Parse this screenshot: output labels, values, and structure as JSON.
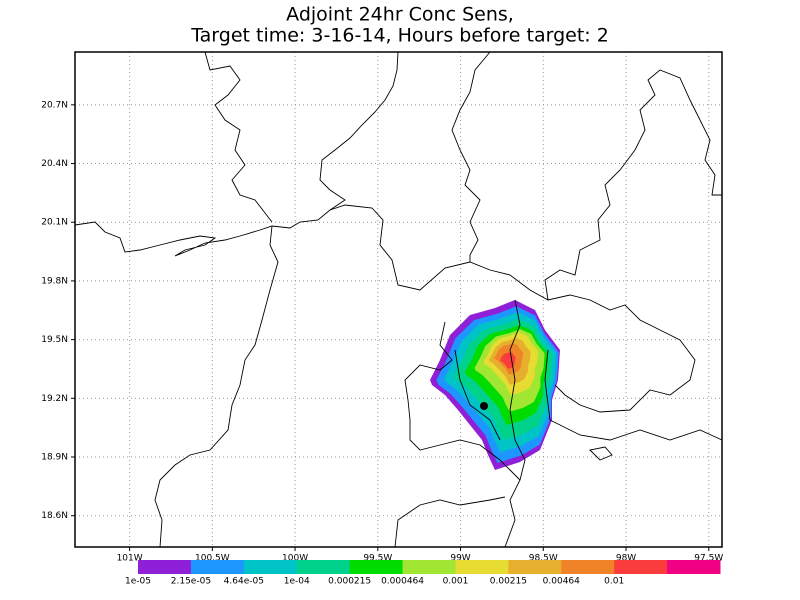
{
  "chart_data": {
    "type": "contour",
    "title": "Adjoint 24hr Conc Sens,",
    "subtitle": "Target time: 3-16-14, Hours before target: 2",
    "xlim": [
      -101.33,
      -97.42
    ],
    "ylim": [
      18.44,
      20.97
    ],
    "xticks": [
      {
        "value": -101,
        "label": "101W"
      },
      {
        "value": -100.5,
        "label": "100.5W"
      },
      {
        "value": -100,
        "label": "100W"
      },
      {
        "value": -99.5,
        "label": "99.5W"
      },
      {
        "value": -99,
        "label": "99W"
      },
      {
        "value": -98.5,
        "label": "98.5W"
      },
      {
        "value": -98,
        "label": "98W"
      },
      {
        "value": -97.5,
        "label": "97.5W"
      }
    ],
    "yticks": [
      {
        "value": 18.6,
        "label": "18.6N"
      },
      {
        "value": 18.9,
        "label": "18.9N"
      },
      {
        "value": 19.2,
        "label": "19.2N"
      },
      {
        "value": 19.5,
        "label": "19.5N"
      },
      {
        "value": 19.8,
        "label": "19.8N"
      },
      {
        "value": 20.1,
        "label": "20.1N"
      },
      {
        "value": 20.4,
        "label": "20.4N"
      },
      {
        "value": 20.7,
        "label": "20.7N"
      }
    ],
    "grid": true,
    "colorbar": {
      "colors": [
        "#9020d8",
        "#1e96ff",
        "#00c3c8",
        "#00d28c",
        "#00dc00",
        "#a0e632",
        "#e6dc32",
        "#e6af2d",
        "#f08228",
        "#fa3c3c",
        "#f00082"
      ],
      "levels": [
        {
          "value": 1e-05,
          "label": "1e-05"
        },
        {
          "value": 2.15e-05,
          "label": "2.15e-05"
        },
        {
          "value": 4.64e-05,
          "label": "4.64e-05"
        },
        {
          "value": 0.0001,
          "label": "1e-04"
        },
        0.000215,
        0.000464,
        0.001,
        0.00215,
        0.00464,
        0.01
      ]
    }
  }
}
